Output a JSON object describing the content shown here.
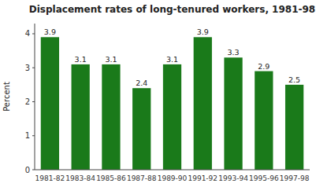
{
  "chart_data": {
    "type": "bar",
    "title": "Displacement rates of long-tenured workers, 1981-98",
    "categories": [
      "1981-82",
      "1983-84",
      "1985-86",
      "1987-88",
      "1989-90",
      "1991-92",
      "1993-94",
      "1995-96",
      "1997-98"
    ],
    "values": [
      3.9,
      3.1,
      3.1,
      2.4,
      3.1,
      3.9,
      3.3,
      2.9,
      2.5
    ],
    "color": "#1a7a1a",
    "ylabel": "Percent",
    "ylim": [
      0,
      4.3
    ],
    "yticks": [
      0,
      1,
      2,
      3,
      4
    ],
    "data_labels": true,
    "grid": false
  }
}
